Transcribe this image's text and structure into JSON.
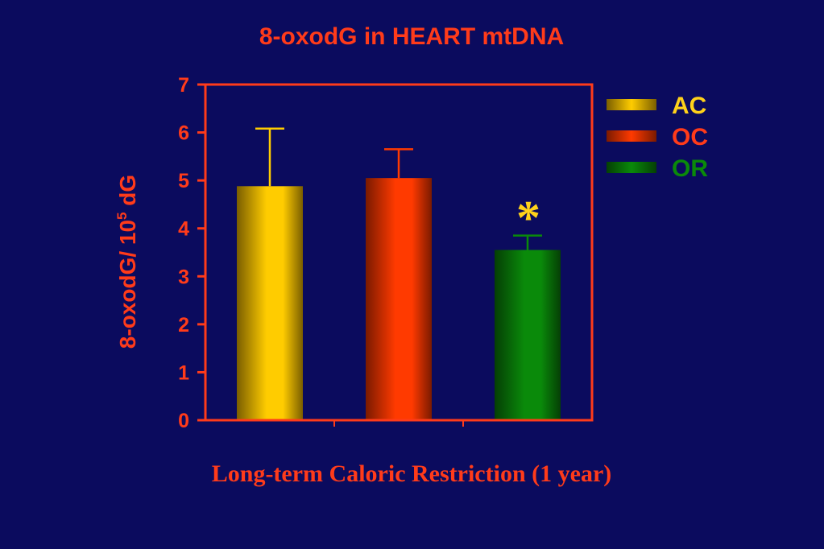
{
  "chart_data": {
    "type": "bar",
    "title": "8-oxodG in HEART mtDNA",
    "ylabel_main": "8-oxodG/ 10",
    "ylabel_sup": "5",
    "ylabel_tail": " dG",
    "xlabel": "Long-term Caloric Restriction (1 year)",
    "ylim": [
      0,
      7
    ],
    "yticks": [
      "0",
      "1",
      "2",
      "3",
      "4",
      "5",
      "6",
      "7"
    ],
    "series": [
      {
        "name": "AC",
        "value": 4.88,
        "error": 1.2,
        "color": "#ffcc00",
        "dark": "#7a5e00",
        "label_color": "#ffd21a"
      },
      {
        "name": "OC",
        "value": 5.05,
        "error": 0.6,
        "color": "#ff3a00",
        "dark": "#7a1a00",
        "label_color": "#ff3b1a"
      },
      {
        "name": "OR",
        "value": 3.55,
        "error": 0.3,
        "color": "#0a8a0a",
        "dark": "#053f05",
        "label_color": "#0a8a0a"
      }
    ],
    "annotation": "*",
    "annotation_series": "OR",
    "grid": false,
    "legend_position": "right"
  }
}
